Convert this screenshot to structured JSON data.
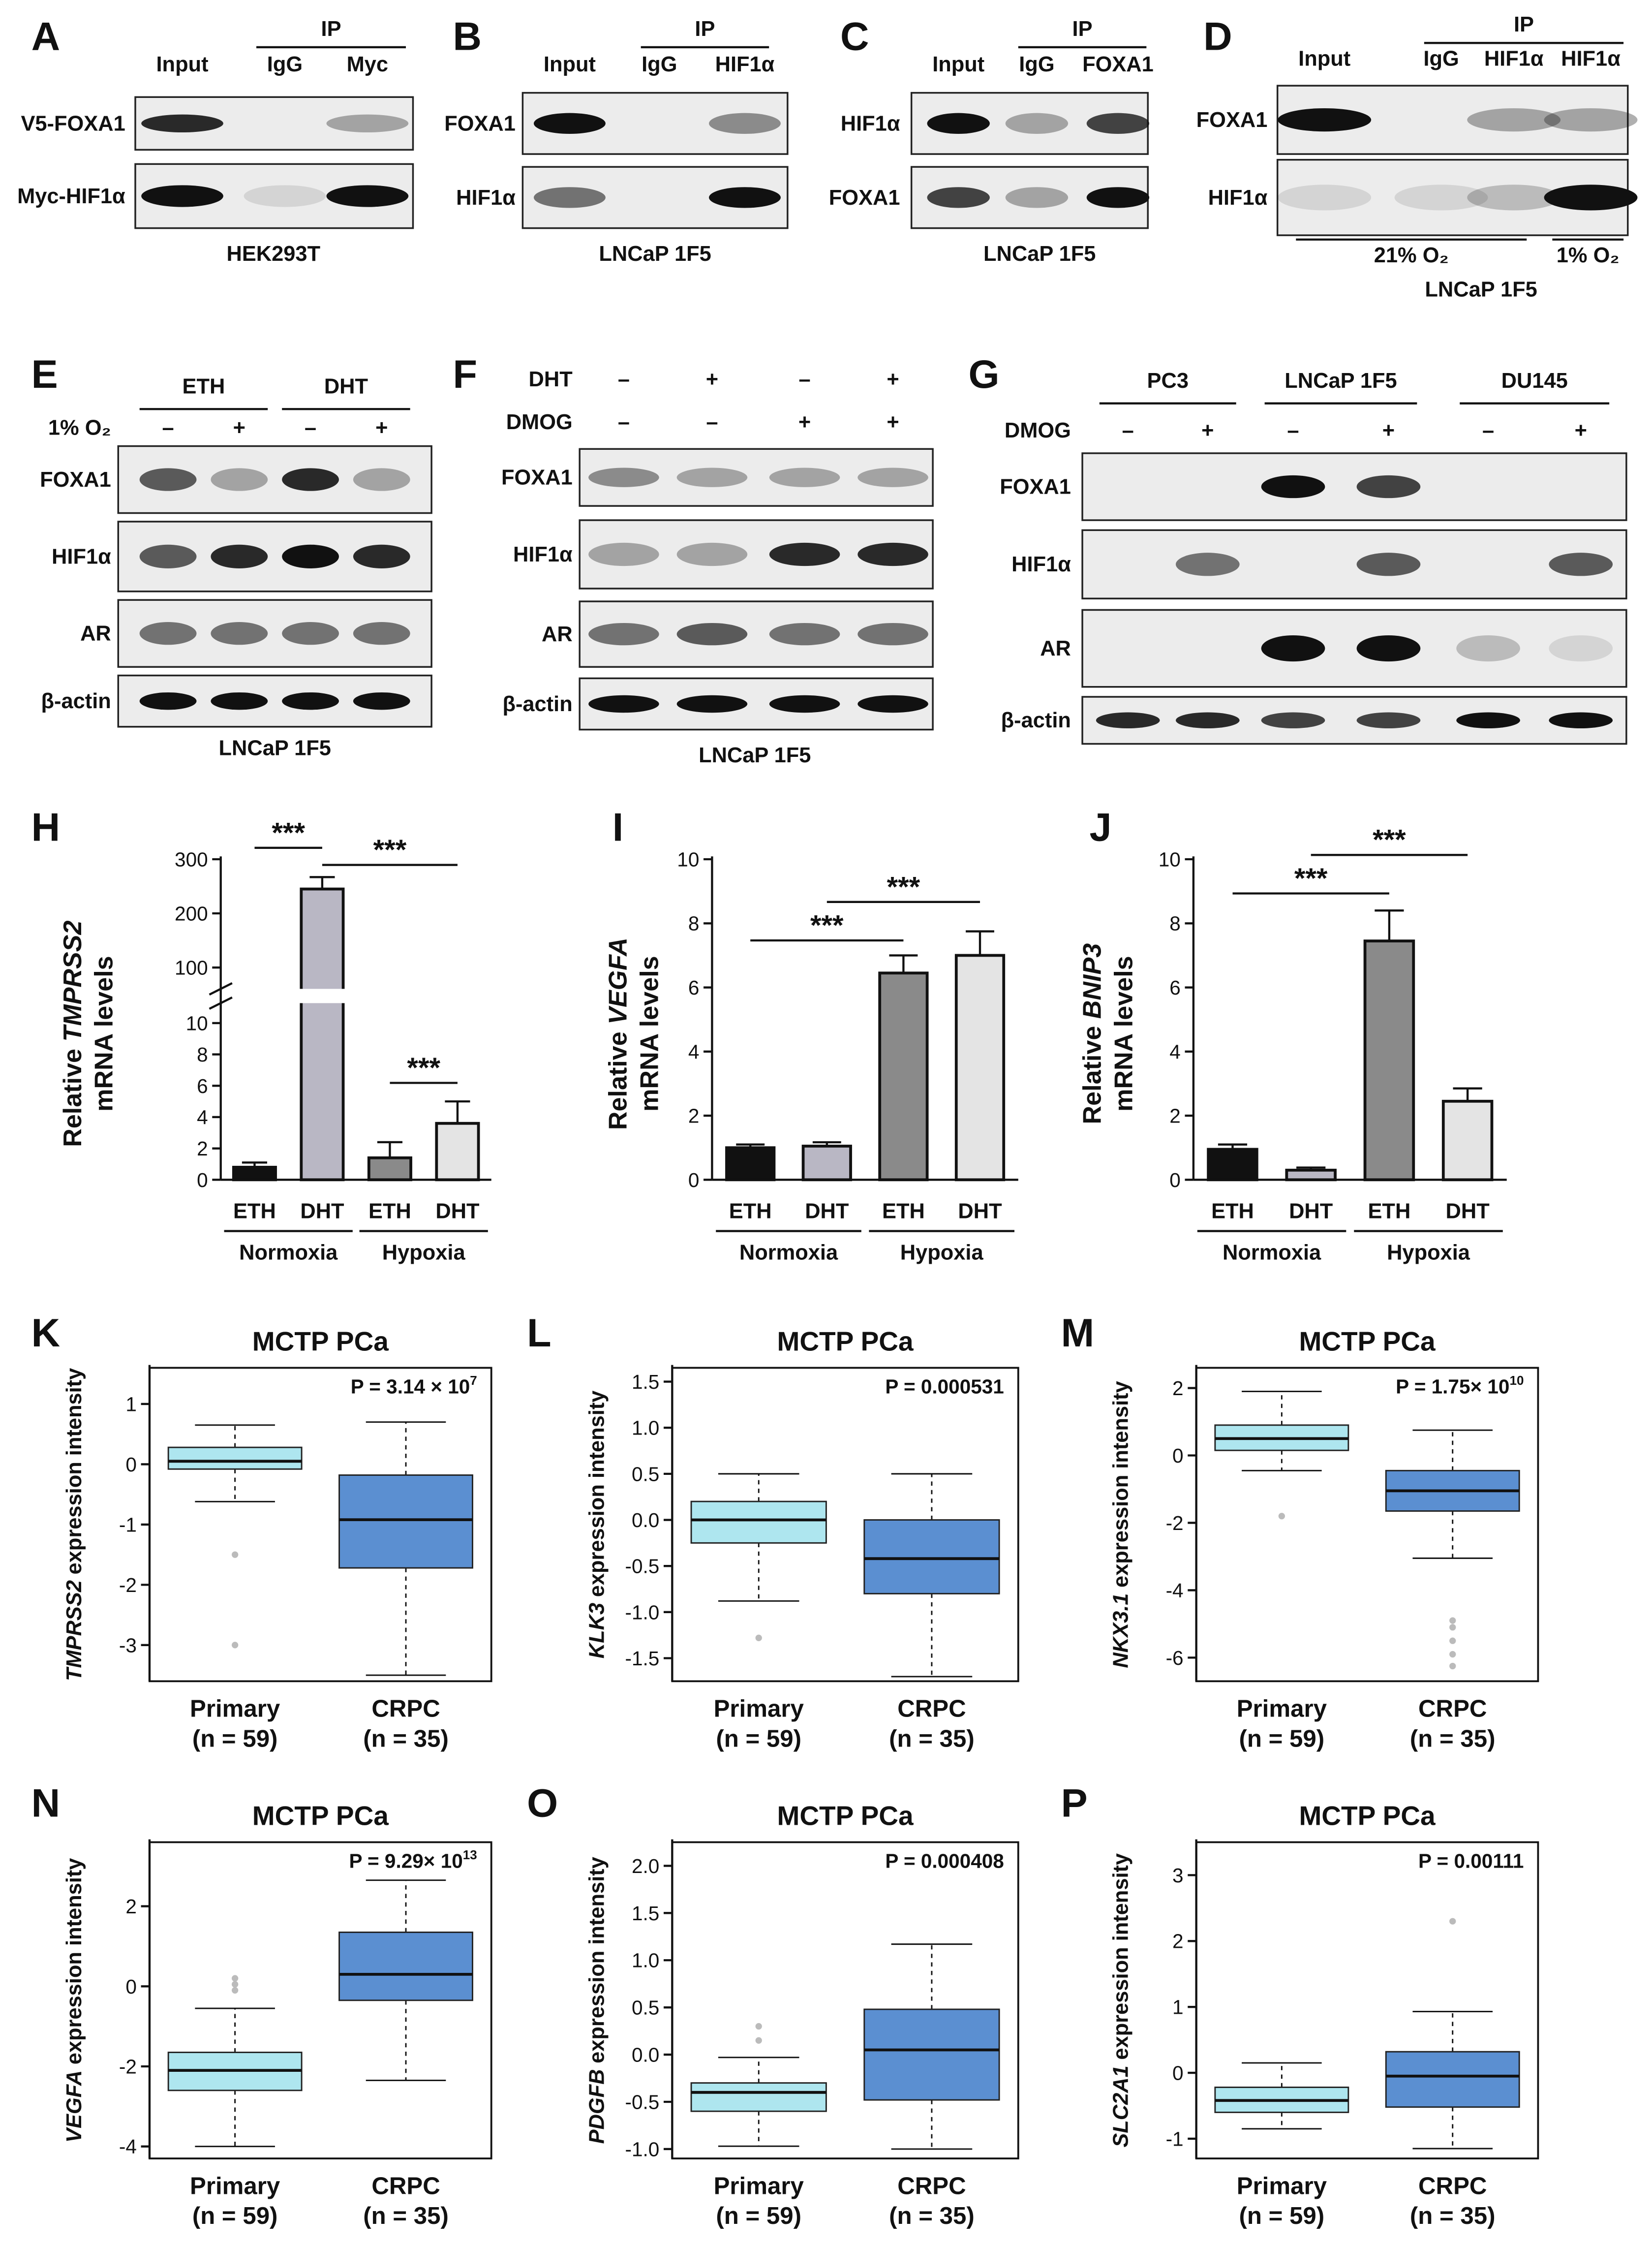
{
  "blots": [
    {
      "letter": "A",
      "ip": "IP",
      "lanes": [
        "Input",
        "IgG",
        "Myc"
      ],
      "rows": [
        "V5-FOXA1",
        "Myc-HIF1α"
      ],
      "caption": "HEK293T"
    },
    {
      "letter": "B",
      "ip": "IP",
      "lanes": [
        "Input",
        "IgG",
        "HIF1α"
      ],
      "rows": [
        "FOXA1",
        "HIF1α"
      ],
      "caption": "LNCaP 1F5"
    },
    {
      "letter": "C",
      "ip": "IP",
      "lanes": [
        "Input",
        "IgG",
        "FOXA1"
      ],
      "rows": [
        "HIF1α",
        "FOXA1"
      ],
      "caption": "LNCaP 1F5"
    },
    {
      "letter": "D",
      "ip": "IP",
      "lanes": [
        "Input",
        "IgG",
        "HIF1α",
        "HIF1α"
      ],
      "rows": [
        "FOXA1",
        "HIF1α"
      ],
      "conditions": [
        "21% O₂",
        "1% O₂"
      ],
      "caption": "LNCaP 1F5"
    },
    {
      "letter": "E",
      "groups": [
        "ETH",
        "DHT"
      ],
      "treatments": [
        {
          "label": "1% O₂",
          "signs": [
            "–",
            "+",
            "–",
            "+"
          ]
        }
      ],
      "rows": [
        "FOXA1",
        "HIF1α",
        "AR",
        "β-actin"
      ],
      "caption": "LNCaP 1F5"
    },
    {
      "letter": "F",
      "treatments": [
        {
          "label": "DHT",
          "signs": [
            "–",
            "+",
            "–",
            "+"
          ]
        },
        {
          "label": "DMOG",
          "signs": [
            "–",
            "–",
            "+",
            "+"
          ]
        }
      ],
      "rows": [
        "FOXA1",
        "HIF1α",
        "AR",
        "β-actin"
      ],
      "caption": "LNCaP 1F5"
    },
    {
      "letter": "G",
      "groups": [
        "PC3",
        "LNCaP 1F5",
        "DU145"
      ],
      "treatments": [
        {
          "label": "DMOG",
          "signs": [
            "–",
            "+",
            "–",
            "+",
            "–",
            "+"
          ]
        }
      ],
      "rows": [
        "FOXA1",
        "HIF1α",
        "AR",
        "β-actin"
      ]
    }
  ],
  "chart_data": [
    {
      "letter": "H",
      "type": "bar",
      "ylabel_prefix": "Relative",
      "ylabel_gene": "TMPRSS2",
      "ylabel_line2": "mRNA levels",
      "categories": [
        "ETH",
        "DHT",
        "ETH",
        "DHT"
      ],
      "groups": [
        "Normoxia",
        "Hypoxia"
      ],
      "values": [
        0.8,
        245,
        1.4,
        3.6
      ],
      "errors": [
        0.3,
        22,
        1.0,
        1.4
      ],
      "colors": [
        "#111111",
        "#b9b7c4",
        "#8a8a8a",
        "#e4e4e4"
      ],
      "ylim": [
        0,
        300
      ],
      "ybreak": [
        10,
        100
      ],
      "yticks": [
        0,
        2,
        4,
        6,
        8,
        10,
        100,
        200,
        300
      ],
      "annotations": [
        "***",
        "***",
        "***"
      ]
    },
    {
      "letter": "I",
      "type": "bar",
      "ylabel_prefix": "Relative",
      "ylabel_gene": "VEGFA",
      "ylabel_line2": "mRNA levels",
      "categories": [
        "ETH",
        "DHT",
        "ETH",
        "DHT"
      ],
      "groups": [
        "Normoxia",
        "Hypoxia"
      ],
      "values": [
        1.0,
        1.05,
        6.45,
        7.0
      ],
      "errors": [
        0.1,
        0.12,
        0.55,
        0.75
      ],
      "colors": [
        "#111111",
        "#b9b7c4",
        "#8a8a8a",
        "#e4e4e4"
      ],
      "ylim": [
        0,
        10
      ],
      "yticks": [
        0,
        2,
        4,
        6,
        8,
        10
      ],
      "annotations": [
        "***",
        "***"
      ]
    },
    {
      "letter": "J",
      "type": "bar",
      "ylabel_prefix": "Relative",
      "ylabel_gene": "BNIP3",
      "ylabel_line2": "mRNA levels",
      "categories": [
        "ETH",
        "DHT",
        "ETH",
        "DHT"
      ],
      "groups": [
        "Normoxia",
        "Hypoxia"
      ],
      "values": [
        0.95,
        0.3,
        7.45,
        2.45
      ],
      "errors": [
        0.15,
        0.08,
        0.95,
        0.4
      ],
      "colors": [
        "#111111",
        "#b9b7c4",
        "#8a8a8a",
        "#e4e4e4"
      ],
      "ylim": [
        0,
        10
      ],
      "yticks": [
        0,
        2,
        4,
        6,
        8,
        10
      ],
      "annotations": [
        "***",
        "***"
      ]
    },
    {
      "letter": "K",
      "type": "box",
      "title": "MCTP PCa",
      "ylabel_gene": "TMPRSS2",
      "ylabel_rest": "expression intensity",
      "p_value": "P = 3.14 × 10",
      "p_exponent": "7",
      "categories": [
        "Primary",
        "CRPC"
      ],
      "n_labels": [
        "(n = 59)",
        "(n = 35)"
      ],
      "ylim": [
        -3.6,
        1.6
      ],
      "yticks": [
        -3,
        -2,
        -1,
        0,
        1
      ],
      "boxes": [
        {
          "whislo": -0.62,
          "q1": -0.08,
          "med": 0.05,
          "q3": 0.28,
          "whishi": 0.65,
          "fliers": [
            -1.5,
            -3.0
          ],
          "color": "#aee6ef"
        },
        {
          "whislo": -3.5,
          "q1": -1.72,
          "med": -0.92,
          "q3": -0.18,
          "whishi": 0.7,
          "color": "#5b8fd1"
        }
      ]
    },
    {
      "letter": "L",
      "type": "box",
      "title": "MCTP PCa",
      "ylabel_gene": "KLK3",
      "ylabel_rest": "expression intensity",
      "p_value": "P = 0.000531",
      "categories": [
        "Primary",
        "CRPC"
      ],
      "n_labels": [
        "(n = 59)",
        "(n = 35)"
      ],
      "ylim": [
        -1.75,
        1.65
      ],
      "yticks": [
        -1.5,
        {
          "value": -1,
          "label": "-1.0"
        },
        -0.5,
        {
          "value": 0,
          "label": "0.0"
        },
        0.5,
        {
          "value": 1,
          "label": "1.0"
        },
        1.5
      ],
      "boxes": [
        {
          "whislo": -0.88,
          "q1": -0.25,
          "med": 0.0,
          "q3": 0.2,
          "whishi": 0.5,
          "fliers": [
            -1.28
          ],
          "color": "#aee6ef"
        },
        {
          "whislo": -1.7,
          "q1": -0.8,
          "med": -0.42,
          "q3": 0.0,
          "whishi": 0.5,
          "color": "#5b8fd1"
        }
      ]
    },
    {
      "letter": "M",
      "type": "box",
      "title": "MCTP PCa",
      "ylabel_gene": "NKX3.1",
      "ylabel_rest": "expression intensity",
      "p_value": "P = 1.75× 10",
      "p_exponent": "10",
      "categories": [
        "Primary",
        "CRPC"
      ],
      "n_labels": [
        "(n = 59)",
        "(n = 35)"
      ],
      "ylim": [
        -6.7,
        2.6
      ],
      "yticks": [
        -6,
        -4,
        -2,
        0,
        2
      ],
      "boxes": [
        {
          "whislo": -0.45,
          "q1": 0.15,
          "med": 0.5,
          "q3": 0.9,
          "whishi": 1.9,
          "fliers": [
            -1.8
          ],
          "color": "#aee6ef"
        },
        {
          "whislo": -3.05,
          "q1": -1.65,
          "med": -1.05,
          "q3": -0.45,
          "whishi": 0.75,
          "fliers": [
            -4.9,
            -5.1,
            -5.5,
            -5.9,
            -6.25
          ],
          "color": "#5b8fd1"
        }
      ]
    },
    {
      "letter": "N",
      "type": "box",
      "title": "MCTP PCa",
      "ylabel_gene": "VEGFA",
      "ylabel_rest": "expression intensity",
      "p_value": "P = 9.29× 10",
      "p_exponent": "13",
      "categories": [
        "Primary",
        "CRPC"
      ],
      "n_labels": [
        "(n = 59)",
        "(n = 35)"
      ],
      "ylim": [
        -4.3,
        3.6
      ],
      "yticks": [
        -4,
        -2,
        0,
        2
      ],
      "boxes": [
        {
          "whislo": -4.0,
          "q1": -2.6,
          "med": -2.1,
          "q3": -1.65,
          "whishi": -0.55,
          "fliers": [
            -0.1,
            0.05,
            0.2
          ],
          "color": "#aee6ef"
        },
        {
          "whislo": -2.35,
          "q1": -0.35,
          "med": 0.3,
          "q3": 1.35,
          "whishi": 2.65,
          "color": "#5b8fd1"
        }
      ]
    },
    {
      "letter": "O",
      "type": "box",
      "title": "MCTP PCa",
      "ylabel_gene": "PDGFB",
      "ylabel_rest": "expression intensity",
      "p_value": "P = 0.000408",
      "categories": [
        "Primary",
        "CRPC"
      ],
      "n_labels": [
        "(n = 59)",
        "(n = 35)"
      ],
      "ylim": [
        -1.1,
        2.25
      ],
      "yticks": [
        {
          "value": -1,
          "label": "-1.0"
        },
        -0.5,
        {
          "value": 0,
          "label": "0.0"
        },
        0.5,
        {
          "value": 1,
          "label": "1.0"
        },
        1.5,
        {
          "value": 2,
          "label": "2.0"
        }
      ],
      "boxes": [
        {
          "whislo": -0.97,
          "q1": -0.6,
          "med": -0.4,
          "q3": -0.3,
          "whishi": -0.03,
          "fliers": [
            0.15,
            0.3
          ],
          "color": "#aee6ef"
        },
        {
          "whislo": -1.0,
          "q1": -0.48,
          "med": 0.05,
          "q3": 0.48,
          "whishi": 1.17,
          "color": "#5b8fd1"
        }
      ]
    },
    {
      "letter": "P",
      "type": "box",
      "title": "MCTP PCa",
      "ylabel_gene": "SLC2A1",
      "ylabel_rest": "expression intensity",
      "p_value": "P = 0.00111",
      "categories": [
        "Primary",
        "CRPC"
      ],
      "n_labels": [
        "(n = 59)",
        "(n = 35)"
      ],
      "ylim": [
        -1.3,
        3.5
      ],
      "yticks": [
        -1,
        0,
        1,
        2,
        3
      ],
      "boxes": [
        {
          "whislo": -0.85,
          "q1": -0.6,
          "med": -0.42,
          "q3": -0.22,
          "whishi": 0.15,
          "color": "#aee6ef"
        },
        {
          "whislo": -1.15,
          "q1": -0.52,
          "med": -0.05,
          "q3": 0.32,
          "whishi": 0.93,
          "fliers": [
            2.3
          ],
          "color": "#5b8fd1"
        }
      ]
    }
  ]
}
